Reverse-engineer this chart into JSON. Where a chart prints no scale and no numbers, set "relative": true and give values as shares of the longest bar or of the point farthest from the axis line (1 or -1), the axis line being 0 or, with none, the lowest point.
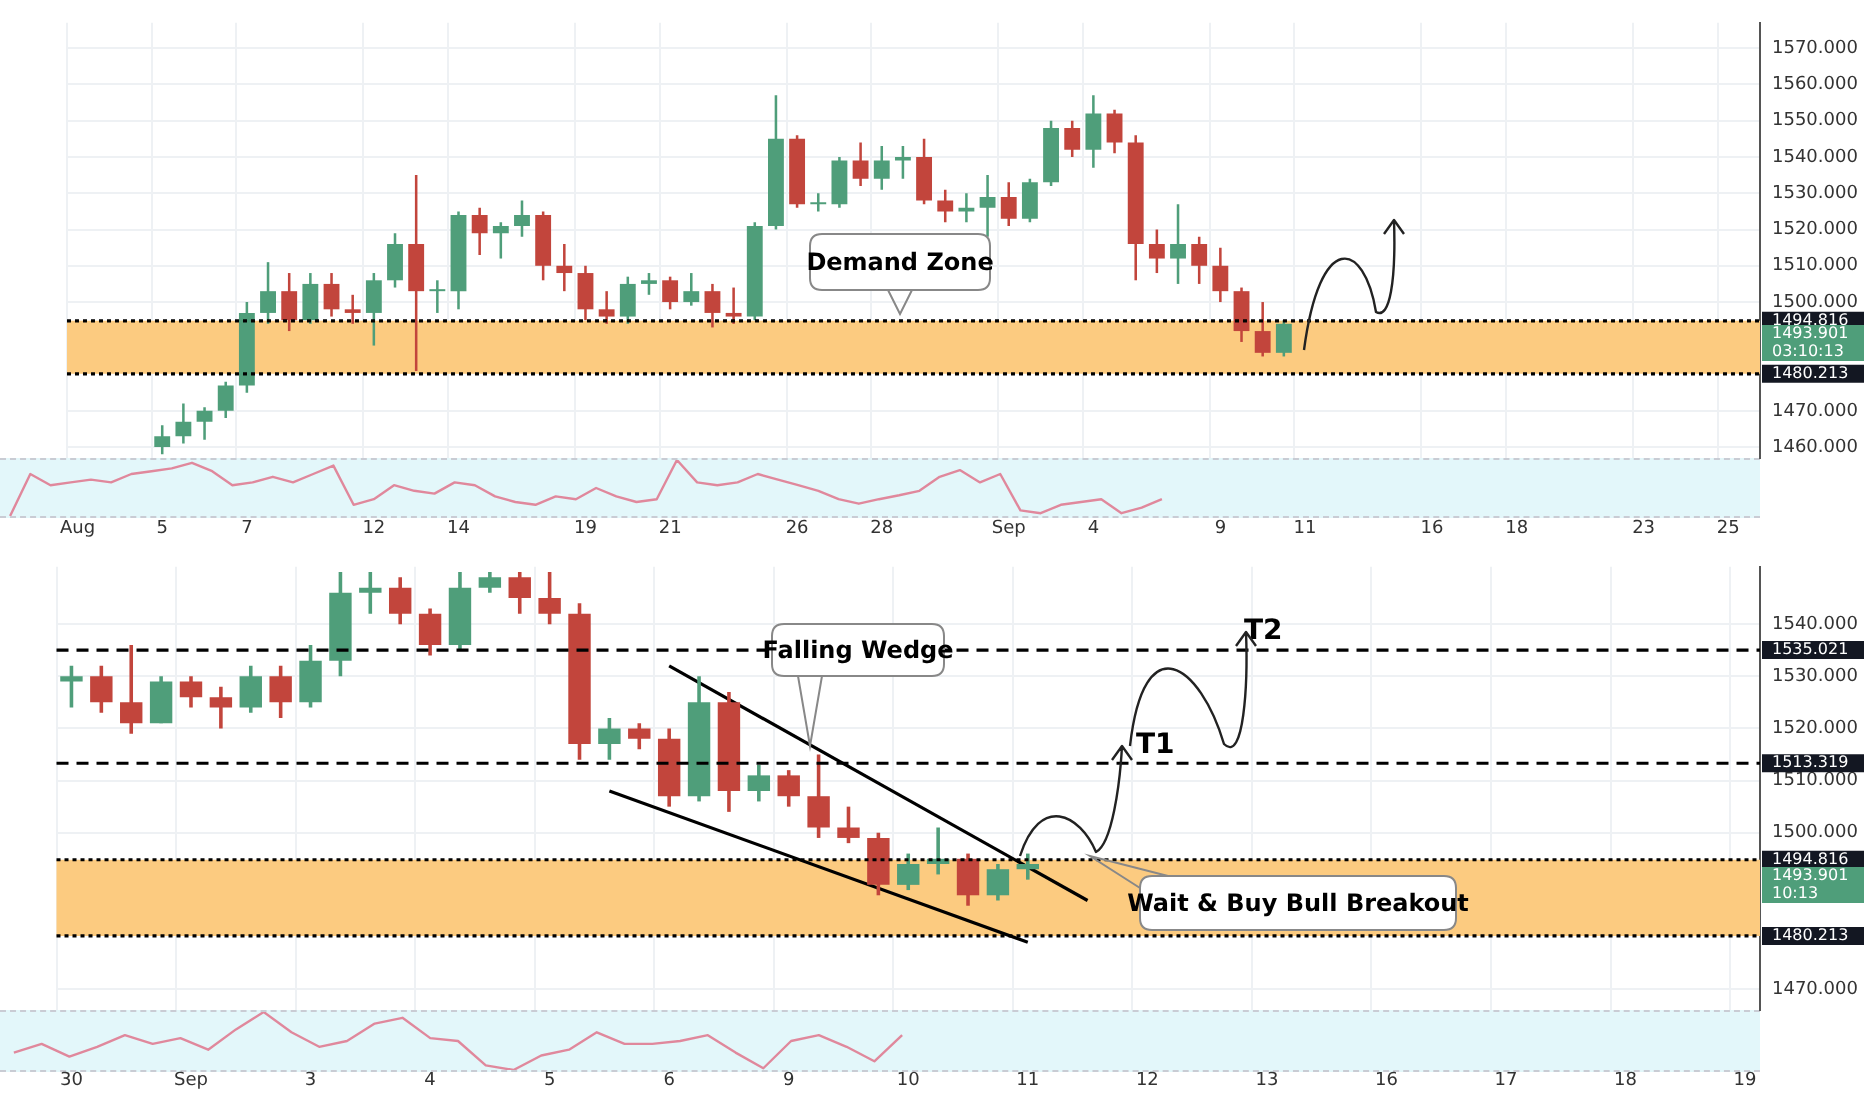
{
  "chart_data": [
    {
      "type": "candlestick",
      "categories": [
        "Aug",
        null,
        null,
        null,
        "5",
        null,
        null,
        null,
        "7",
        null,
        null,
        null,
        null,
        null,
        "12",
        null,
        null,
        null,
        "14",
        null,
        null,
        null,
        null,
        null,
        "19",
        null,
        null,
        null,
        "21",
        null,
        null,
        null,
        null,
        null,
        "26",
        null,
        null,
        null,
        "28",
        null,
        null,
        null,
        null,
        null,
        "Sep",
        null,
        null,
        null,
        "4",
        null,
        null,
        null,
        null,
        null,
        "9",
        null,
        null,
        null,
        "11",
        null,
        null,
        null,
        null,
        null,
        "16",
        null,
        null,
        null,
        "18",
        null,
        null,
        null,
        null,
        null,
        "23",
        null,
        null,
        null,
        "25",
        null
      ],
      "ohlc": [
        null,
        null,
        null,
        null,
        [
          1460,
          1466,
          1458,
          1463
        ],
        [
          1463,
          1472,
          1461,
          1467
        ],
        [
          1467,
          1471,
          1462,
          1470
        ],
        [
          1470,
          1478,
          1468,
          1477
        ],
        [
          1477,
          1500,
          1475,
          1497
        ],
        [
          1497,
          1511,
          1494,
          1503
        ],
        [
          1503,
          1508,
          1492,
          1495
        ],
        [
          1495,
          1508,
          1494,
          1505
        ],
        [
          1505,
          1508,
          1496,
          1498
        ],
        [
          1498,
          1502,
          1494,
          1497
        ],
        [
          1497,
          1508,
          1488,
          1506
        ],
        [
          1506,
          1519,
          1504,
          1516
        ],
        [
          1516,
          1535,
          1481,
          1503
        ],
        [
          1503,
          1506,
          1497,
          1503
        ],
        [
          1503,
          1525,
          1498,
          1524
        ],
        [
          1524,
          1526,
          1513,
          1519
        ],
        [
          1519,
          1522,
          1512,
          1521
        ],
        [
          1521,
          1528,
          1518,
          1524
        ],
        [
          1524,
          1525,
          1506,
          1510
        ],
        [
          1510,
          1516,
          1503,
          1508
        ],
        [
          1508,
          1510,
          1495,
          1498
        ],
        [
          1498,
          1503,
          1494,
          1496
        ],
        [
          1496,
          1507,
          1494,
          1505
        ],
        [
          1505,
          1508,
          1502,
          1506
        ],
        [
          1506,
          1507,
          1498,
          1500
        ],
        [
          1500,
          1508,
          1499,
          1503
        ],
        [
          1503,
          1505,
          1493,
          1497
        ],
        [
          1497,
          1504,
          1494,
          1496
        ],
        [
          1496,
          1522,
          1495,
          1521
        ],
        [
          1521,
          1557,
          1520,
          1545
        ],
        [
          1545,
          1546,
          1526,
          1527
        ],
        [
          1527,
          1530,
          1525,
          1527
        ],
        [
          1527,
          1540,
          1526,
          1539
        ],
        [
          1539,
          1544,
          1532,
          1534
        ],
        [
          1534,
          1543,
          1531,
          1539
        ],
        [
          1539,
          1543,
          1534,
          1540
        ],
        [
          1540,
          1545,
          1527,
          1528
        ],
        [
          1528,
          1531,
          1522,
          1525
        ],
        [
          1525,
          1530,
          1522,
          1526
        ],
        [
          1526,
          1535,
          1518,
          1529
        ],
        [
          1529,
          1533,
          1521,
          1523
        ],
        [
          1523,
          1534,
          1522,
          1533
        ],
        [
          1533,
          1550,
          1532,
          1548
        ],
        [
          1548,
          1550,
          1540,
          1542
        ],
        [
          1542,
          1557,
          1537,
          1552
        ],
        [
          1552,
          1553,
          1541,
          1544
        ],
        [
          1544,
          1546,
          1506,
          1516
        ],
        [
          1516,
          1520,
          1508,
          1512
        ],
        [
          1512,
          1527,
          1505,
          1516
        ],
        [
          1516,
          1518,
          1505,
          1510
        ],
        [
          1510,
          1515,
          1500,
          1503
        ],
        [
          1503,
          1504,
          1489,
          1492
        ],
        [
          1492,
          1500,
          1485,
          1486
        ],
        [
          1486,
          1495,
          1485,
          1494
        ],
        null,
        null,
        null,
        null,
        null,
        null,
        null,
        null,
        null,
        null,
        null,
        null,
        null,
        null,
        null,
        null,
        null,
        null,
        null,
        null,
        null,
        null
      ],
      "colors": [
        null,
        null,
        null,
        null,
        "#4f9e7a",
        "#4f9e7a",
        "#4f9e7a",
        "#4f9e7a",
        "#4f9e7a",
        "#4f9e7a",
        "#c2453c",
        "#4f9e7a",
        "#c2453c",
        "#c2453c",
        "#4f9e7a",
        "#4f9e7a",
        "#c2453c",
        "#4f9e7a",
        "#4f9e7a",
        "#c2453c",
        "#4f9e7a",
        "#4f9e7a",
        "#c2453c",
        "#c2453c",
        "#c2453c",
        "#c2453c",
        "#4f9e7a",
        "#4f9e7a",
        "#c2453c",
        "#4f9e7a",
        "#c2453c",
        "#c2453c",
        "#4f9e7a",
        "#4f9e7a",
        "#c2453c",
        "#4f9e7a",
        "#4f9e7a",
        "#c2453c",
        "#4f9e7a",
        "#4f9e7a",
        "#c2453c",
        "#c2453c",
        "#4f9e7a",
        "#4f9e7a",
        "#c2453c",
        "#4f9e7a",
        "#4f9e7a",
        "#c2453c",
        "#4f9e7a",
        "#c2453c",
        "#c2453c",
        "#c2453c",
        "#4f9e7a",
        "#c2453c",
        "#c2453c",
        "#c2453c",
        "#c2453c",
        "#4f9e7a",
        null,
        null,
        null,
        null,
        null,
        null,
        null,
        null,
        null,
        null,
        null,
        null,
        null,
        null,
        null,
        null,
        null,
        null,
        null,
        null,
        null,
        null
      ],
      "ylim": [
        1457,
        1577
      ],
      "yticks": [
        {
          "value": 1460,
          "label": "1460.000"
        },
        {
          "value": 1470,
          "label": "1470.000"
        },
        {
          "value": 1500,
          "label": "1500.000"
        },
        {
          "value": 1510,
          "label": "1510.000"
        },
        {
          "value": 1520,
          "label": "1520.000"
        },
        {
          "value": 1530,
          "label": "1530.000"
        },
        {
          "value": 1540,
          "label": "1540.000"
        },
        {
          "value": 1550,
          "label": "1550.000"
        },
        {
          "value": 1560,
          "label": "1560.000"
        },
        {
          "value": 1570,
          "label": "1570.000"
        }
      ],
      "grid": true,
      "bands": [
        {
          "axis": "y",
          "from": 1480.213,
          "to": 1494.816,
          "color": "#fccb80"
        }
      ],
      "ref_lines": [
        {
          "axis": "y",
          "value": 1494.816,
          "label": "1494.816",
          "color": "#000000",
          "line_style": "dotted"
        },
        {
          "axis": "y",
          "value": 1480.213,
          "label": "1480.213",
          "color": "#000000",
          "line_style": "dotted"
        }
      ],
      "annotations": [
        "Demand Zone",
        "1493.901",
        "03:10:13"
      ]
    },
    {
      "type": "line",
      "relative": true,
      "categories": [
        null,
        null,
        null,
        null,
        null,
        null,
        null,
        null,
        null,
        null,
        null,
        null,
        null,
        null,
        null,
        null,
        null,
        null,
        null,
        null,
        null,
        null,
        null,
        null,
        null,
        null,
        null,
        null,
        null,
        null,
        null,
        null,
        null,
        null,
        null,
        null,
        null,
        null,
        null,
        null,
        null,
        null,
        null,
        null,
        null,
        null,
        null,
        null,
        null,
        null,
        null,
        null,
        null,
        null,
        null,
        null,
        null,
        null
      ],
      "values": [
        0,
        0.75,
        0.55,
        0.6,
        0.65,
        0.6,
        0.75,
        0.8,
        0.85,
        0.95,
        0.8,
        0.55,
        0.6,
        0.7,
        0.6,
        0.75,
        0.9,
        0.2,
        0.3,
        0.55,
        0.45,
        0.4,
        0.6,
        0.55,
        0.35,
        0.25,
        0.2,
        0.35,
        0.3,
        0.5,
        0.35,
        0.25,
        0.3,
        1,
        0.6,
        0.55,
        0.6,
        0.75,
        0.65,
        0.55,
        0.45,
        0.3,
        0.22,
        0.3,
        0.37,
        0.45,
        0.7,
        0.82,
        0.6,
        0.75,
        0.1,
        0.05,
        0.2,
        0.25,
        0.3,
        0.05,
        0.15,
        0.3
      ],
      "color": "#e0889c"
    },
    {
      "type": "candlestick",
      "categories": [
        "30",
        null,
        null,
        null,
        "Sep",
        null,
        null,
        null,
        "3",
        null,
        null,
        null,
        "4",
        null,
        null,
        null,
        "5",
        null,
        null,
        null,
        "6",
        null,
        null,
        null,
        "9",
        null,
        null,
        null,
        "10",
        null,
        null,
        null,
        "11",
        null,
        null,
        null,
        "12",
        null,
        null,
        null,
        "13",
        null,
        null,
        null,
        "16",
        null,
        null,
        null,
        "17",
        null,
        null,
        null,
        "18",
        null,
        null,
        null,
        "19"
      ],
      "ohlc": [
        [
          1529,
          1532,
          1524,
          1530
        ],
        [
          1530,
          1532,
          1523,
          1525
        ],
        [
          1525,
          1536,
          1519,
          1521
        ],
        [
          1521,
          1530,
          1521,
          1529
        ],
        [
          1529,
          1530,
          1524,
          1526
        ],
        [
          1526,
          1528,
          1520,
          1524
        ],
        [
          1524,
          1532,
          1523,
          1530
        ],
        [
          1530,
          1532,
          1522,
          1525
        ],
        [
          1525,
          1536,
          1524,
          1533
        ],
        [
          1533,
          1550,
          1530,
          1546
        ],
        [
          1546,
          1550,
          1542,
          1547
        ],
        [
          1547,
          1549,
          1540,
          1542
        ],
        [
          1542,
          1543,
          1534,
          1536
        ],
        [
          1536,
          1550,
          1535,
          1547
        ],
        [
          1547,
          1550,
          1546,
          1549
        ],
        [
          1549,
          1550,
          1542,
          1545
        ],
        [
          1545,
          1550,
          1540,
          1542
        ],
        [
          1542,
          1544,
          1514,
          1517
        ],
        [
          1517,
          1522,
          1514,
          1520
        ],
        [
          1520,
          1521,
          1516,
          1518
        ],
        [
          1518,
          1520,
          1505,
          1507
        ],
        [
          1507,
          1530,
          1506,
          1525
        ],
        [
          1525,
          1527,
          1504,
          1508
        ],
        [
          1508,
          1513,
          1506,
          1511
        ],
        [
          1511,
          1512,
          1505,
          1507
        ],
        [
          1507,
          1515,
          1499,
          1501
        ],
        [
          1501,
          1505,
          1498,
          1499
        ],
        [
          1499,
          1500,
          1488,
          1490
        ],
        [
          1490,
          1496,
          1489,
          1494
        ],
        [
          1494,
          1501,
          1492,
          1495
        ],
        [
          1495,
          1496,
          1486,
          1488
        ],
        [
          1488,
          1494,
          1487,
          1493
        ],
        [
          1493,
          1496,
          1491,
          1494
        ],
        null,
        null,
        null,
        null,
        null,
        null,
        null,
        null,
        null,
        null,
        null,
        null,
        null,
        null,
        null,
        null,
        null,
        null,
        null,
        null,
        null,
        null,
        null,
        null
      ],
      "colors": [
        "#4f9e7a",
        "#c2453c",
        "#c2453c",
        "#4f9e7a",
        "#c2453c",
        "#c2453c",
        "#4f9e7a",
        "#c2453c",
        "#4f9e7a",
        "#4f9e7a",
        "#4f9e7a",
        "#c2453c",
        "#c2453c",
        "#4f9e7a",
        "#4f9e7a",
        "#c2453c",
        "#c2453c",
        "#c2453c",
        "#4f9e7a",
        "#c2453c",
        "#c2453c",
        "#4f9e7a",
        "#c2453c",
        "#4f9e7a",
        "#c2453c",
        "#c2453c",
        "#c2453c",
        "#c2453c",
        "#4f9e7a",
        "#4f9e7a",
        "#c2453c",
        "#4f9e7a",
        "#4f9e7a",
        null,
        null,
        null,
        null,
        null,
        null,
        null,
        null,
        null,
        null,
        null,
        null,
        null,
        null,
        null,
        null,
        null,
        null,
        null,
        null,
        null,
        null,
        null,
        null
      ],
      "ylim": [
        1466,
        1551
      ],
      "yticks": [
        {
          "value": 1470,
          "label": "1470.000"
        },
        {
          "value": 1500,
          "label": "1500.000"
        },
        {
          "value": 1510,
          "label": "1510.000"
        },
        {
          "value": 1520,
          "label": "1520.000"
        },
        {
          "value": 1530,
          "label": "1530.000"
        },
        {
          "value": 1540,
          "label": "1540.000"
        }
      ],
      "series": [
        {
          "type": "line",
          "color": "#000000",
          "values": [
            null,
            null,
            null,
            null,
            null,
            null,
            null,
            null,
            null,
            null,
            null,
            null,
            null,
            null,
            null,
            null,
            null,
            null,
            null,
            null,
            1532,
            null,
            null,
            null,
            null,
            null,
            null,
            null,
            null,
            null,
            null,
            null,
            null,
            null,
            1487,
            null,
            null,
            null,
            null,
            null,
            null,
            null,
            null,
            null,
            null,
            null,
            null,
            null,
            null,
            null,
            null,
            null,
            null,
            null,
            null,
            null,
            null
          ]
        },
        {
          "type": "line",
          "color": "#000000",
          "values": [
            null,
            null,
            null,
            null,
            null,
            null,
            null,
            null,
            null,
            null,
            null,
            null,
            null,
            null,
            null,
            null,
            null,
            null,
            1508,
            null,
            null,
            null,
            null,
            null,
            null,
            null,
            null,
            null,
            null,
            null,
            null,
            null,
            1479,
            null,
            null,
            null,
            null,
            null,
            null,
            null,
            null,
            null,
            null,
            null,
            null,
            null,
            null,
            null,
            null,
            null,
            null,
            null,
            null,
            null,
            null,
            null,
            null
          ]
        }
      ],
      "grid": true,
      "bands": [
        {
          "axis": "y",
          "from": 1480.213,
          "to": 1494.816,
          "color": "#fccb80"
        }
      ],
      "ref_lines": [
        {
          "axis": "y",
          "value": 1535.021,
          "label": "1535.021",
          "color": "#000000",
          "line_style": "dashed"
        },
        {
          "axis": "y",
          "value": 1513.319,
          "label": "1513.319",
          "color": "#000000",
          "line_style": "dashed"
        },
        {
          "axis": "y",
          "value": 1494.816,
          "label": "1494.816",
          "color": "#000000",
          "line_style": "dotted"
        },
        {
          "axis": "y",
          "value": 1480.213,
          "label": "1480.213",
          "color": "#000000",
          "line_style": "dotted"
        }
      ],
      "annotations": [
        "Falling Wedge",
        "Wait & Buy Bull Breakout",
        {
          "text": "T2",
          "y": 1535.021
        },
        {
          "text": "T1",
          "y": 1513.319
        },
        "1493.901",
        "10:13"
      ]
    },
    {
      "type": "line",
      "relative": true,
      "categories": [
        null,
        null,
        null,
        null,
        null,
        null,
        null,
        null,
        null,
        null,
        null,
        null,
        null,
        null,
        null,
        null,
        null,
        null,
        null,
        null,
        null,
        null,
        null,
        null,
        null,
        null,
        null,
        null,
        null,
        null,
        null,
        null,
        null
      ],
      "values": [
        0.3,
        0.45,
        0.23,
        0.4,
        0.6,
        0.45,
        0.55,
        0.35,
        0.7,
        1,
        0.65,
        0.4,
        0.5,
        0.8,
        0.9,
        0.55,
        0.5,
        0.08,
        0,
        0.25,
        0.35,
        0.65,
        0.45,
        0.45,
        0.5,
        0.6,
        0.3,
        0.03,
        0.5,
        0.6,
        0.4,
        0.15,
        0.6
      ],
      "color": "#e0889c"
    }
  ]
}
